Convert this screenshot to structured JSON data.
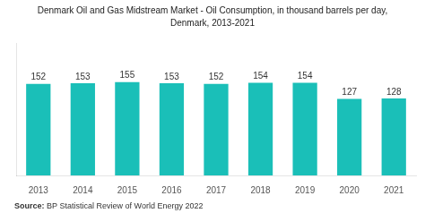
{
  "chart_data": {
    "type": "bar",
    "title": "Denmark Oil and Gas Midstream Market - Oil Consumption, in thousand barrels per day,",
    "subtitle": "Denmark, 2013-2021",
    "source": "Source: BP Statistical Review of World Energy 2022",
    "categories": [
      "2013",
      "2014",
      "2015",
      "2016",
      "2017",
      "2018",
      "2019",
      "2020",
      "2021"
    ],
    "values": [
      152,
      153,
      155,
      153,
      152,
      154,
      154,
      127,
      128
    ],
    "color": "#1ABFB8",
    "ylim": [
      0,
      220
    ],
    "grid": false,
    "data_labels": true,
    "tick_labels": "x"
  }
}
